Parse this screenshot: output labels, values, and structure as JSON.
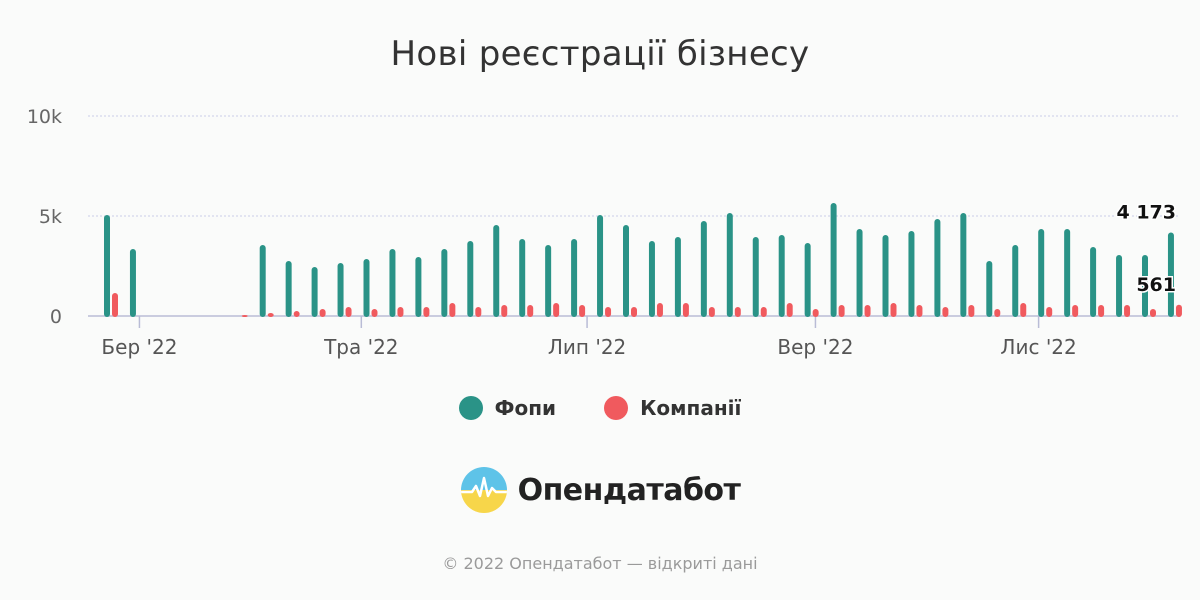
{
  "chart_data": {
    "type": "bar",
    "title": "Нові реєстрації бізнесу",
    "xlabel": "",
    "ylabel": "",
    "ylim": [
      0,
      10000
    ],
    "y_ticks": [
      {
        "value": 0,
        "label": "0"
      },
      {
        "value": 5000,
        "label": "5k"
      },
      {
        "value": 10000,
        "label": "10k"
      }
    ],
    "x_ticks": [
      {
        "index": 1.25,
        "label": "Бер '22"
      },
      {
        "index": 9.8,
        "label": "Тра '22"
      },
      {
        "index": 18.5,
        "label": "Лип '22"
      },
      {
        "index": 27.3,
        "label": "Вер '22"
      },
      {
        "index": 35.9,
        "label": "Лис '22"
      }
    ],
    "grid": true,
    "legend_position": "bottom",
    "series": [
      {
        "name": "Фопи",
        "color": "#2a9387",
        "values": [
          5050,
          3350,
          0,
          0,
          0,
          0,
          3550,
          2750,
          2450,
          2650,
          2850,
          3350,
          2950,
          3350,
          3750,
          4550,
          3850,
          3550,
          3850,
          5050,
          4550,
          3750,
          3950,
          4750,
          5150,
          3950,
          4050,
          3650,
          5650,
          4350,
          4050,
          4250,
          4850,
          5150,
          2750,
          3550,
          4350,
          4350,
          3450,
          3050,
          3050,
          4173
        ]
      },
      {
        "name": "Компанії",
        "color": "#f05a5e",
        "values": [
          1150,
          0,
          0,
          0,
          0,
          50,
          150,
          250,
          350,
          450,
          350,
          450,
          450,
          650,
          450,
          550,
          550,
          650,
          550,
          450,
          450,
          650,
          650,
          450,
          450,
          450,
          650,
          350,
          550,
          550,
          650,
          550,
          450,
          550,
          350,
          650,
          450,
          550,
          550,
          550,
          350,
          561
        ]
      }
    ],
    "annotations": [
      {
        "series": 0,
        "index": 41,
        "label": "4 173"
      },
      {
        "series": 1,
        "index": 41,
        "label": "561"
      }
    ]
  },
  "legend": {
    "items": [
      {
        "label": "Фопи",
        "color": "#2a9387"
      },
      {
        "label": "Компанії",
        "color": "#f05a5e"
      }
    ]
  },
  "logo": {
    "text": "Опендатабот",
    "icon": "opendatabot-logo-icon"
  },
  "footer": {
    "text": "© 2022 Опендатабот — відкриті дані"
  }
}
